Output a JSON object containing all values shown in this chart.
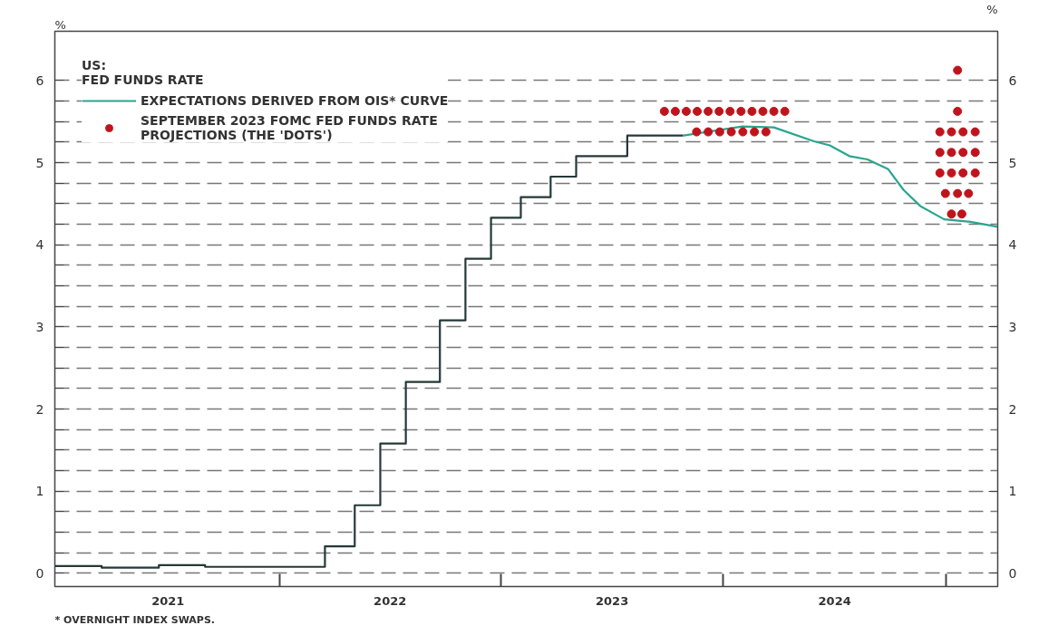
{
  "chart_data": {
    "type": "line",
    "legend_title": "US:\nFED FUNDS RATE",
    "xlim": [
      "2020-12-28",
      "2025-03-27"
    ],
    "xticks": [
      {
        "value": "2022-01-01",
        "label": null
      },
      {
        "value": "2023-01-01",
        "label": null
      },
      {
        "value": "2024-01-01",
        "label": null
      },
      {
        "value": "2025-01-01",
        "label": null
      },
      {
        "value": "2021-07-02",
        "label": "2021"
      },
      {
        "value": "2022-07-02",
        "label": "2022"
      },
      {
        "value": "2023-07-02",
        "label": "2023"
      },
      {
        "value": "2024-07-02",
        "label": "2024"
      }
    ],
    "ylabel": "%",
    "y2label": "%",
    "ylim": [
      -0.16,
      6.6
    ],
    "y2lim": [
      -0.16,
      6.6
    ],
    "yticks": [
      0,
      {
        "value": 0.25,
        "label": null
      },
      {
        "value": 0.5,
        "label": null
      },
      {
        "value": 0.75,
        "label": null
      },
      1,
      {
        "value": 1.25,
        "label": null
      },
      {
        "value": 1.5,
        "label": null
      },
      {
        "value": 1.75,
        "label": null
      },
      2,
      {
        "value": 2.25,
        "label": null
      },
      {
        "value": 2.5,
        "label": null
      },
      {
        "value": 2.75,
        "label": null
      },
      3,
      {
        "value": 3.25,
        "label": null
      },
      {
        "value": 3.5,
        "label": null
      },
      {
        "value": 3.75,
        "label": null
      },
      4,
      {
        "value": 4.25,
        "label": null
      },
      {
        "value": 4.5,
        "label": null
      },
      {
        "value": 4.75,
        "label": null
      },
      5,
      {
        "value": 5.25,
        "label": null
      },
      {
        "value": 5.5,
        "label": null
      },
      {
        "value": 5.75,
        "label": null
      },
      6
    ],
    "y2ticks": [
      0,
      1,
      2,
      3,
      4,
      5,
      6
    ],
    "grid": "y",
    "legend": "top left",
    "series": [
      {
        "type": "step",
        "color": "#263838",
        "x": [
          "2020-12-28",
          "2021-03-15",
          "2021-06-17",
          "2021-09-01",
          "2022-03-17",
          "2022-05-05",
          "2022-06-16",
          "2022-07-28",
          "2022-09-22",
          "2022-11-03",
          "2022-12-15",
          "2023-02-02",
          "2023-03-23",
          "2023-05-04",
          "2023-07-27",
          "2023-10-27"
        ],
        "values": [
          0.09,
          0.07,
          0.1,
          0.08,
          0.33,
          0.83,
          1.58,
          2.33,
          3.08,
          3.83,
          4.33,
          4.58,
          4.83,
          5.08,
          5.33,
          5.33
        ]
      },
      {
        "name": "EXPECTATIONS DERIVED FROM OIS* CURVE",
        "color": "#2aa58f",
        "x": [
          "2023-10-27",
          "2024-02-01",
          "2024-03-24",
          "2024-05-29",
          "2024-06-24",
          "2024-07-26",
          "2024-08-25",
          "2024-09-28",
          "2024-10-23",
          "2024-11-20",
          "2024-12-29",
          "2025-02-10",
          "2025-03-27"
        ],
        "values": [
          5.33,
          5.44,
          5.43,
          5.26,
          5.21,
          5.08,
          5.04,
          4.92,
          4.67,
          4.47,
          4.31,
          4.28,
          4.22
        ]
      },
      {
        "type": "scatter",
        "name": "SEPTEMBER 2023 FOMC FED FUNDS RATE PROJECTIONS (THE 'DOTS')",
        "color": "#c0141c",
        "x": [
          "2023-09-26",
          "2023-10-14",
          "2023-11-01",
          "2023-11-19",
          "2023-12-07",
          "2023-12-25",
          "2024-01-12",
          "2024-01-30",
          "2024-02-17",
          "2024-03-06",
          "2024-03-24",
          "2024-04-11",
          "2023-11-18",
          "2023-12-07",
          "2023-12-26",
          "2024-01-14",
          "2024-02-02",
          "2024-02-21",
          "2024-03-11",
          "2025-01-20",
          "2025-01-20",
          "2024-12-22",
          "2025-01-10",
          "2025-01-29",
          "2025-02-18",
          "2024-12-22",
          "2025-01-10",
          "2025-01-29",
          "2025-02-18",
          "2024-12-22",
          "2025-01-10",
          "2025-01-29",
          "2025-02-18",
          "2024-12-31",
          "2025-01-20",
          "2025-02-07",
          "2025-01-10",
          "2025-01-27"
        ],
        "values": [
          5.625,
          5.625,
          5.625,
          5.625,
          5.625,
          5.625,
          5.625,
          5.625,
          5.625,
          5.625,
          5.625,
          5.625,
          5.375,
          5.375,
          5.375,
          5.375,
          5.375,
          5.375,
          5.375,
          6.125,
          5.625,
          5.375,
          5.375,
          5.375,
          5.375,
          5.125,
          5.125,
          5.125,
          5.125,
          4.875,
          4.875,
          4.875,
          4.875,
          4.625,
          4.625,
          4.625,
          4.375,
          4.375
        ]
      }
    ],
    "annotations": [
      "* OVERNIGHT INDEX SWAPS."
    ]
  }
}
